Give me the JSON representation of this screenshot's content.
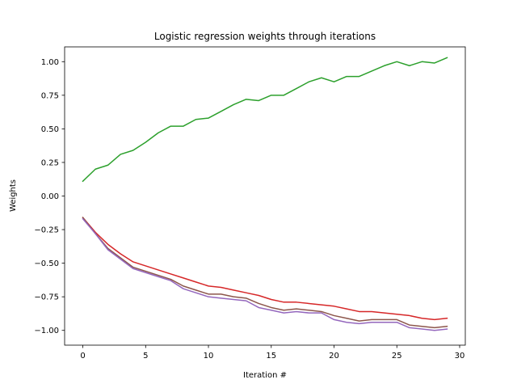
{
  "chart_data": {
    "type": "line",
    "title": "Logistic regression weights through iterations",
    "xlabel": "Iteration #",
    "ylabel": "Weights",
    "xlim": [
      -1.45,
      30.45
    ],
    "ylim": [
      -1.11,
      1.11
    ],
    "xticks": [
      0,
      5,
      10,
      15,
      20,
      25,
      30
    ],
    "yticks": [
      -1.0,
      -0.75,
      -0.5,
      -0.25,
      0.0,
      0.25,
      0.5,
      0.75,
      1.0
    ],
    "ytick_labels": [
      "−1.00",
      "−0.75",
      "−0.50",
      "−0.25",
      "0.00",
      "0.25",
      "0.50",
      "0.75",
      "1.00"
    ],
    "grid": false,
    "x": [
      0,
      1,
      2,
      3,
      4,
      5,
      6,
      7,
      8,
      9,
      10,
      11,
      12,
      13,
      14,
      15,
      16,
      17,
      18,
      19,
      20,
      21,
      22,
      23,
      24,
      25,
      26,
      27,
      28,
      29
    ],
    "series": [
      {
        "color": "#2ca02c",
        "values": [
          0.11,
          0.2,
          0.23,
          0.31,
          0.34,
          0.4,
          0.47,
          0.52,
          0.52,
          0.57,
          0.58,
          0.63,
          0.68,
          0.72,
          0.71,
          0.75,
          0.75,
          0.8,
          0.85,
          0.88,
          0.85,
          0.89,
          0.89,
          0.93,
          0.97,
          1.0,
          0.97,
          1.0,
          0.99,
          1.03
        ]
      },
      {
        "color": "#d62728",
        "values": [
          -0.16,
          -0.27,
          -0.36,
          -0.43,
          -0.49,
          -0.52,
          -0.55,
          -0.58,
          -0.61,
          -0.64,
          -0.67,
          -0.68,
          -0.7,
          -0.72,
          -0.74,
          -0.77,
          -0.79,
          -0.79,
          -0.8,
          -0.81,
          -0.82,
          -0.84,
          -0.86,
          -0.86,
          -0.87,
          -0.88,
          -0.89,
          -0.91,
          -0.92,
          -0.91
        ]
      },
      {
        "color": "#8c564b",
        "values": [
          -0.16,
          -0.28,
          -0.39,
          -0.46,
          -0.53,
          -0.56,
          -0.59,
          -0.62,
          -0.67,
          -0.7,
          -0.73,
          -0.73,
          -0.75,
          -0.76,
          -0.8,
          -0.83,
          -0.85,
          -0.84,
          -0.85,
          -0.86,
          -0.89,
          -0.91,
          -0.93,
          -0.92,
          -0.92,
          -0.92,
          -0.96,
          -0.97,
          -0.98,
          -0.97
        ]
      },
      {
        "color": "#9467bd",
        "values": [
          -0.17,
          -0.28,
          -0.4,
          -0.47,
          -0.54,
          -0.57,
          -0.6,
          -0.63,
          -0.69,
          -0.72,
          -0.75,
          -0.76,
          -0.77,
          -0.78,
          -0.83,
          -0.85,
          -0.87,
          -0.86,
          -0.87,
          -0.87,
          -0.92,
          -0.94,
          -0.95,
          -0.94,
          -0.94,
          -0.94,
          -0.98,
          -0.99,
          -1.0,
          -0.99
        ]
      }
    ]
  }
}
